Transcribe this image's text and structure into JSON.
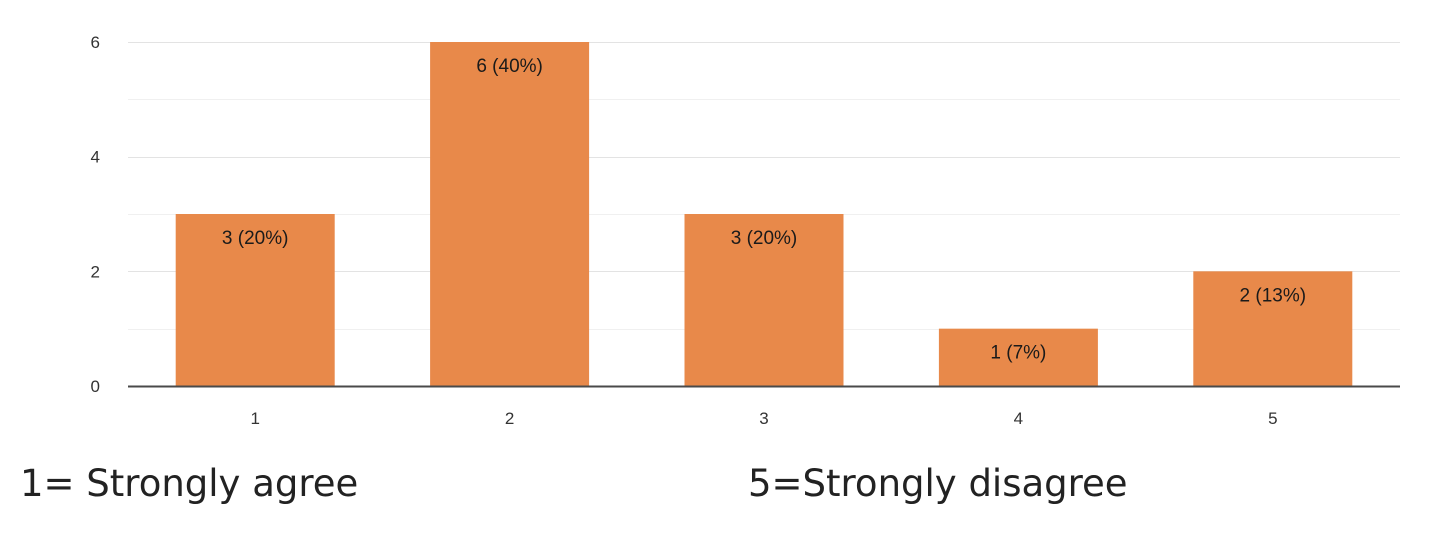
{
  "chart_data": {
    "type": "bar",
    "categories": [
      "1",
      "2",
      "3",
      "4",
      "5"
    ],
    "values": [
      3,
      6,
      3,
      1,
      2
    ],
    "data_labels": [
      "3 (20%)",
      "6 (40%)",
      "3 (20%)",
      "1 (7%)",
      "2 (13%)"
    ],
    "y_ticks": [
      "0",
      "2",
      "4",
      "6"
    ],
    "ylim": [
      0,
      6
    ],
    "grid": true,
    "bar_color": "#e8894a",
    "title": "",
    "xlabel": "",
    "ylabel": ""
  },
  "scale_notes": {
    "left": "1= Strongly agree",
    "right": "5=Strongly disagree"
  }
}
